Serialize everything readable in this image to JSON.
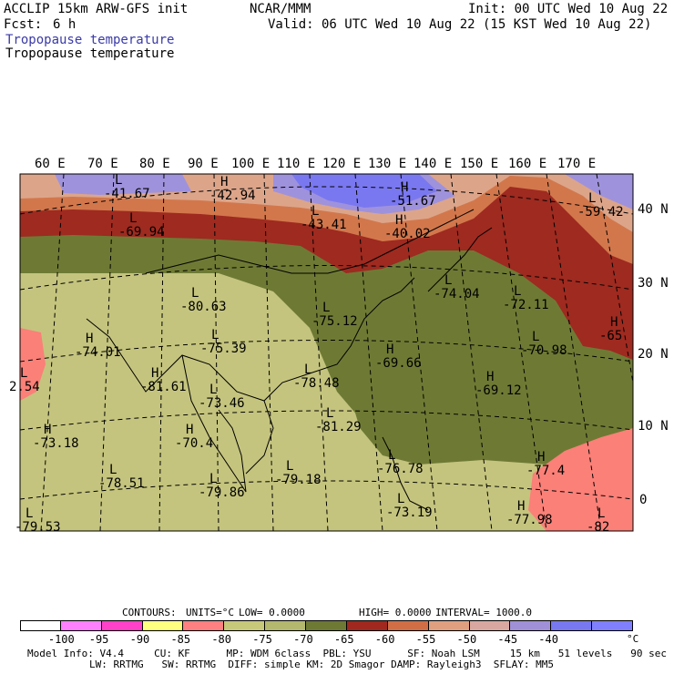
{
  "header": {
    "model": "ACCLIP 15km ARW-GFS init",
    "center": "NCAR/MMM",
    "init": "Init: 00 UTC Wed 10 Aug 22",
    "fcst_label": "Fcst:",
    "fcst_value": "6 h",
    "valid": "Valid: 06 UTC Wed 10 Aug 22 (15 KST Wed 10 Aug 22)",
    "field_title_blue": "Tropopause temperature",
    "field_title_black": "Tropopause temperature"
  },
  "map": {
    "lon_labels": [
      "60 E",
      "70 E",
      "80 E",
      "90 E",
      "100 E",
      "110 E",
      "120 E",
      "130 E",
      "140 E",
      "150 E",
      "160 E",
      "170 E"
    ],
    "lat_labels": [
      "40 N",
      "30 N",
      "20 N",
      "10 N",
      "0"
    ],
    "centers": [
      {
        "type": "L",
        "value": "-41.67"
      },
      {
        "type": "H",
        "value": "-42.94"
      },
      {
        "type": "H",
        "value": "-51.67"
      },
      {
        "type": "L",
        "value": "-69.94"
      },
      {
        "type": "L",
        "value": "-43.41"
      },
      {
        "type": "H",
        "value": "-40.02"
      },
      {
        "type": "L",
        "value": "-59.42"
      },
      {
        "type": "L",
        "value": "-80.63"
      },
      {
        "type": "L",
        "value": "-75.12"
      },
      {
        "type": "L",
        "value": "-74.04"
      },
      {
        "type": "L",
        "value": "-72.11"
      },
      {
        "type": "H",
        "value": "-74.01"
      },
      {
        "type": "L",
        "value": "-75.39"
      },
      {
        "type": "H",
        "value": "-65"
      },
      {
        "type": "L",
        "value": "-70.98"
      },
      {
        "type": "H",
        "value": "-69.66"
      },
      {
        "type": "L",
        "value": "-78.48"
      },
      {
        "type": "H",
        "value": "-69.12"
      },
      {
        "type": "L",
        "value": "2.54"
      },
      {
        "type": "H",
        "value": "-81.61"
      },
      {
        "type": "L",
        "value": "-73.46"
      },
      {
        "type": "L",
        "value": "-81.29"
      },
      {
        "type": "H",
        "value": "-73.18"
      },
      {
        "type": "H",
        "value": "-70.4"
      },
      {
        "type": "L",
        "value": "-78.51"
      },
      {
        "type": "L",
        "value": "-79.18"
      },
      {
        "type": "L",
        "value": "-76.78"
      },
      {
        "type": "H",
        "value": "-77.4"
      },
      {
        "type": "L",
        "value": "-79.86"
      },
      {
        "type": "L",
        "value": "-73.19"
      },
      {
        "type": "H",
        "value": "-77.98"
      },
      {
        "type": "L",
        "value": "-79.53"
      },
      {
        "type": "L",
        "value": "-82"
      }
    ]
  },
  "contours_line": {
    "label": "CONTOURS:",
    "units": "UNITS=°C",
    "low": "LOW= 0.0000",
    "high": "HIGH= 0.0000",
    "interval": "INTERVAL= 1000.0"
  },
  "colorbar": {
    "colors": [
      "#ffffff",
      "#ff80ff",
      "#ff40c8",
      "#ffff80",
      "#ff8080",
      "#c8c87a",
      "#b4b86e",
      "#6e7a34",
      "#a0281e",
      "#d26e46",
      "#e0a080",
      "#d8a8a0",
      "#a090d8",
      "#7878f0",
      "#8080ff"
    ],
    "ticks": [
      "-100",
      "-95",
      "-90",
      "-85",
      "-80",
      "-75",
      "-70",
      "-65",
      "-60",
      "-55",
      "-50",
      "-45",
      "-40"
    ],
    "unit": "°C"
  },
  "footer": {
    "line1": "Model Info: V4.4     CU: KF      MP: WDM 6class  PBL: YSU      SF: Noah LSM     15 km   51 levels   90 sec",
    "line2": "LW: RRTMG   SW: RRTMG  DIFF: simple KM: 2D Smagor DAMP: Rayleigh3  SFLAY: MM5"
  }
}
